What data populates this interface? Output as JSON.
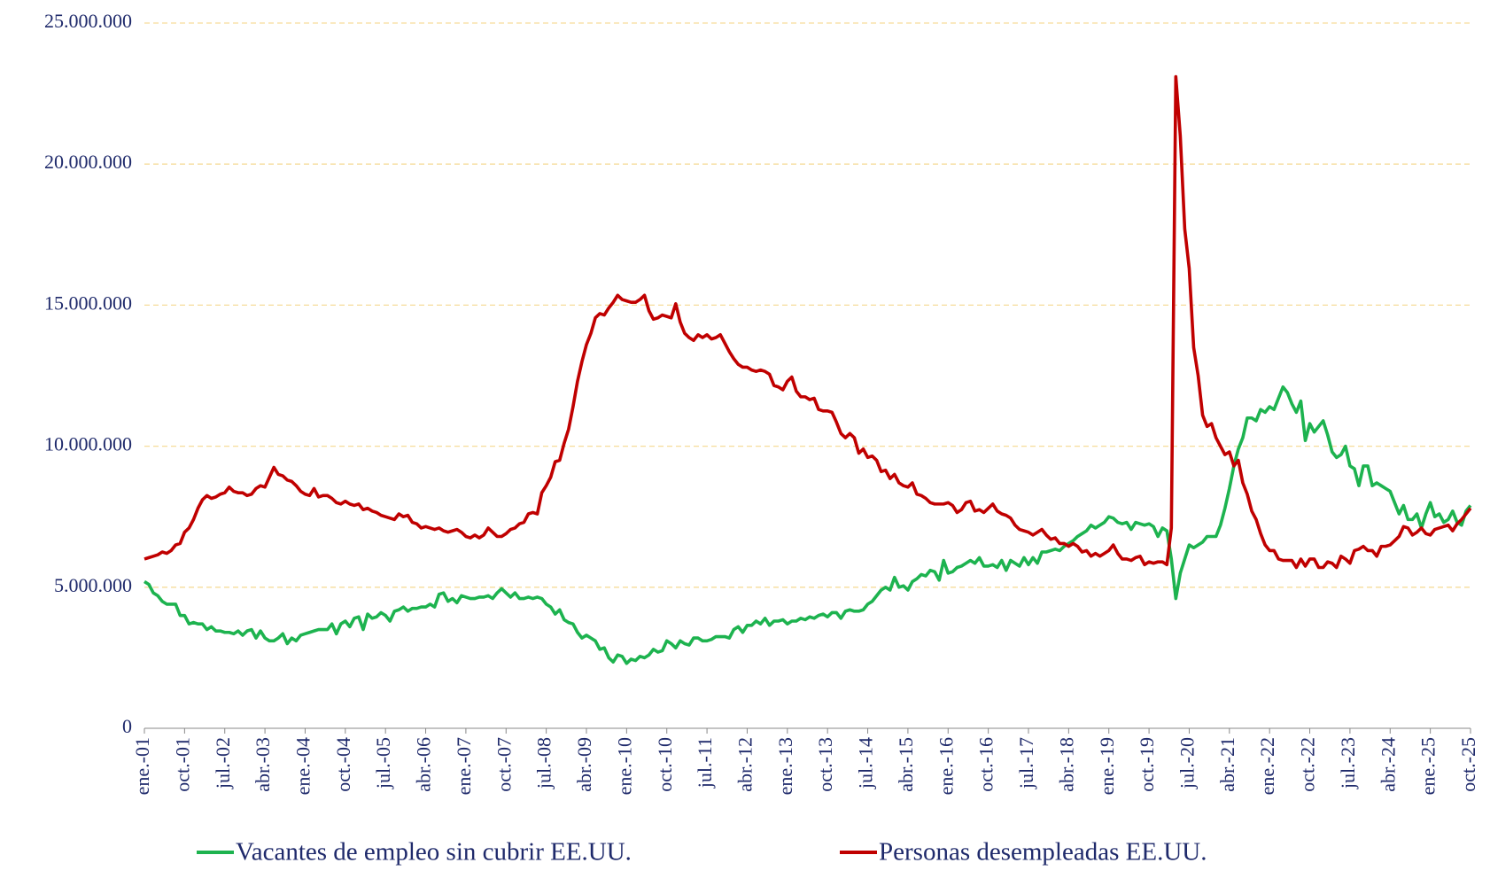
{
  "chart_data": {
    "type": "line",
    "categories": [
      "ene.-01",
      null,
      null,
      null,
      null,
      null,
      null,
      null,
      null,
      "oct.-01",
      null,
      null,
      null,
      null,
      null,
      null,
      null,
      null,
      "jul.-02",
      null,
      null,
      null,
      null,
      null,
      null,
      null,
      null,
      "abr.-03",
      null,
      null,
      null,
      null,
      null,
      null,
      null,
      null,
      "ene.-04",
      null,
      null,
      null,
      null,
      null,
      null,
      null,
      null,
      "oct.-04",
      null,
      null,
      null,
      null,
      null,
      null,
      null,
      null,
      "jul.-05",
      null,
      null,
      null,
      null,
      null,
      null,
      null,
      null,
      "abr.-06",
      null,
      null,
      null,
      null,
      null,
      null,
      null,
      null,
      "ene.-07",
      null,
      null,
      null,
      null,
      null,
      null,
      null,
      null,
      "oct.-07",
      null,
      null,
      null,
      null,
      null,
      null,
      null,
      null,
      "jul.-08",
      null,
      null,
      null,
      null,
      null,
      null,
      null,
      null,
      "abr.-09",
      null,
      null,
      null,
      null,
      null,
      null,
      null,
      null,
      "ene.-10",
      null,
      null,
      null,
      null,
      null,
      null,
      null,
      null,
      "oct.-10",
      null,
      null,
      null,
      null,
      null,
      null,
      null,
      null,
      "jul.-11",
      null,
      null,
      null,
      null,
      null,
      null,
      null,
      null,
      "abr.-12",
      null,
      null,
      null,
      null,
      null,
      null,
      null,
      null,
      "ene.-13",
      null,
      null,
      null,
      null,
      null,
      null,
      null,
      null,
      "oct.-13",
      null,
      null,
      null,
      null,
      null,
      null,
      null,
      null,
      "jul.-14",
      null,
      null,
      null,
      null,
      null,
      null,
      null,
      null,
      "abr.-15",
      null,
      null,
      null,
      null,
      null,
      null,
      null,
      null,
      "ene.-16",
      null,
      null,
      null,
      null,
      null,
      null,
      null,
      null,
      "oct.-16",
      null,
      null,
      null,
      null,
      null,
      null,
      null,
      null,
      "jul.-17",
      null,
      null,
      null,
      null,
      null,
      null,
      null,
      null,
      "abr.-18",
      null,
      null,
      null,
      null,
      null,
      null,
      null,
      null,
      "ene.-19",
      null,
      null,
      null,
      null,
      null,
      null,
      null,
      null,
      "oct.-19",
      null,
      null,
      null,
      null,
      null,
      null,
      null,
      null,
      "jul.-20",
      null,
      null,
      null,
      null,
      null,
      null,
      null,
      null,
      "abr.-21",
      null,
      null,
      null,
      null,
      null,
      null,
      null,
      null,
      "ene.-22",
      null,
      null,
      null,
      null,
      null,
      null,
      null,
      null,
      "oct.-22",
      null,
      null,
      null,
      null,
      null,
      null,
      null,
      null,
      "jul.-23",
      null,
      null,
      null,
      null,
      null,
      null,
      null,
      null,
      "abr.-24",
      null,
      null,
      null,
      null,
      null,
      null,
      null,
      null,
      "ene.-25",
      null,
      null,
      null,
      null,
      null,
      null,
      null,
      null,
      "oct.-25"
    ],
    "series": [
      {
        "name": "Vacantes de empleo sin cubrir EE.UU.",
        "color": "#1db34f",
        "values": [
          5200000,
          5100000,
          4800000,
          4700000,
          4500000,
          4400000,
          4400000,
          4400000,
          4000000,
          4000000,
          3700000,
          3750000,
          3700000,
          3700000,
          3500000,
          3600000,
          3450000,
          3450000,
          3400000,
          3400000,
          3350000,
          3450000,
          3300000,
          3450000,
          3500000,
          3200000,
          3450000,
          3200000,
          3100000,
          3100000,
          3200000,
          3350000,
          3000000,
          3200000,
          3100000,
          3300000,
          3350000,
          3400000,
          3450000,
          3500000,
          3500000,
          3500000,
          3700000,
          3350000,
          3700000,
          3800000,
          3600000,
          3900000,
          3950000,
          3500000,
          4050000,
          3900000,
          3950000,
          4100000,
          4000000,
          3800000,
          4150000,
          4200000,
          4300000,
          4150000,
          4250000,
          4250000,
          4300000,
          4300000,
          4400000,
          4300000,
          4750000,
          4800000,
          4500000,
          4600000,
          4450000,
          4700000,
          4650000,
          4600000,
          4600000,
          4650000,
          4650000,
          4700000,
          4600000,
          4800000,
          4950000,
          4800000,
          4650000,
          4800000,
          4600000,
          4600000,
          4650000,
          4600000,
          4650000,
          4600000,
          4400000,
          4300000,
          4050000,
          4200000,
          3850000,
          3750000,
          3700000,
          3400000,
          3200000,
          3300000,
          3200000,
          3100000,
          2800000,
          2850000,
          2500000,
          2350000,
          2600000,
          2550000,
          2300000,
          2450000,
          2400000,
          2550000,
          2500000,
          2600000,
          2800000,
          2700000,
          2750000,
          3100000,
          3000000,
          2850000,
          3100000,
          3000000,
          2950000,
          3200000,
          3200000,
          3100000,
          3100000,
          3150000,
          3250000,
          3250000,
          3250000,
          3200000,
          3500000,
          3600000,
          3400000,
          3650000,
          3650000,
          3800000,
          3700000,
          3900000,
          3650000,
          3800000,
          3800000,
          3850000,
          3700000,
          3800000,
          3800000,
          3900000,
          3850000,
          3950000,
          3900000,
          4000000,
          4050000,
          3950000,
          4100000,
          4100000,
          3900000,
          4150000,
          4200000,
          4150000,
          4150000,
          4200000,
          4400000,
          4500000,
          4700000,
          4900000,
          5000000,
          4900000,
          5350000,
          5000000,
          5050000,
          4900000,
          5200000,
          5300000,
          5450000,
          5400000,
          5600000,
          5550000,
          5250000,
          5950000,
          5500000,
          5550000,
          5700000,
          5750000,
          5850000,
          5950000,
          5850000,
          6050000,
          5750000,
          5750000,
          5800000,
          5700000,
          5950000,
          5600000,
          5950000,
          5850000,
          5750000,
          6050000,
          5800000,
          6050000,
          5850000,
          6250000,
          6250000,
          6300000,
          6350000,
          6300000,
          6450000,
          6550000,
          6650000,
          6800000,
          6900000,
          7000000,
          7200000,
          7100000,
          7200000,
          7300000,
          7500000,
          7450000,
          7300000,
          7250000,
          7300000,
          7050000,
          7300000,
          7250000,
          7200000,
          7250000,
          7150000,
          6800000,
          7100000,
          7000000,
          6000000,
          4600000,
          5500000,
          6000000,
          6500000,
          6400000,
          6500000,
          6600000,
          6800000,
          6800000,
          6800000,
          7200000,
          7800000,
          8500000,
          9300000,
          9900000,
          10300000,
          11000000,
          11000000,
          10900000,
          11300000,
          11200000,
          11400000,
          11300000,
          11700000,
          12100000,
          11900000,
          11500000,
          11200000,
          11600000,
          10200000,
          10800000,
          10500000,
          10700000,
          10900000,
          10400000,
          9800000,
          9600000,
          9700000,
          10000000,
          9300000,
          9200000,
          8600000,
          9300000,
          9300000,
          8600000,
          8700000,
          8600000,
          8500000,
          8400000,
          8000000,
          7600000,
          7900000,
          7400000,
          7400000,
          7600000,
          7100000,
          7600000,
          8000000,
          7500000,
          7600000,
          7300000,
          7400000,
          7700000,
          7300000,
          7200000,
          7700000,
          7900000
        ]
      },
      {
        "name": "Personas desempleadas EE.UU.",
        "color": "#c00000",
        "values": [
          6000000,
          6050000,
          6100000,
          6150000,
          6250000,
          6200000,
          6300000,
          6500000,
          6550000,
          6950000,
          7100000,
          7400000,
          7800000,
          8100000,
          8250000,
          8150000,
          8200000,
          8300000,
          8350000,
          8550000,
          8400000,
          8350000,
          8350000,
          8250000,
          8300000,
          8500000,
          8600000,
          8550000,
          8900000,
          9250000,
          9000000,
          8950000,
          8800000,
          8750000,
          8600000,
          8400000,
          8300000,
          8250000,
          8500000,
          8200000,
          8250000,
          8250000,
          8150000,
          8000000,
          7950000,
          8050000,
          7950000,
          7900000,
          7950000,
          7750000,
          7800000,
          7700000,
          7650000,
          7550000,
          7500000,
          7450000,
          7400000,
          7600000,
          7500000,
          7550000,
          7300000,
          7250000,
          7100000,
          7150000,
          7100000,
          7050000,
          7100000,
          7000000,
          6950000,
          7000000,
          7050000,
          6950000,
          6800000,
          6750000,
          6850000,
          6750000,
          6850000,
          7100000,
          6950000,
          6800000,
          6800000,
          6900000,
          7050000,
          7100000,
          7250000,
          7300000,
          7600000,
          7650000,
          7600000,
          8350000,
          8600000,
          8900000,
          9450000,
          9500000,
          10100000,
          10600000,
          11400000,
          12300000,
          13000000,
          13600000,
          14000000,
          14550000,
          14700000,
          14650000,
          14900000,
          15100000,
          15350000,
          15200000,
          15150000,
          15100000,
          15100000,
          15200000,
          15350000,
          14800000,
          14500000,
          14550000,
          14650000,
          14600000,
          14550000,
          15050000,
          14400000,
          14000000,
          13850000,
          13750000,
          13950000,
          13850000,
          13950000,
          13800000,
          13850000,
          13950000,
          13650000,
          13350000,
          13100000,
          12900000,
          12800000,
          12800000,
          12700000,
          12650000,
          12700000,
          12650000,
          12550000,
          12150000,
          12100000,
          12000000,
          12300000,
          12450000,
          11950000,
          11750000,
          11750000,
          11650000,
          11700000,
          11300000,
          11250000,
          11250000,
          11200000,
          10850000,
          10450000,
          10300000,
          10450000,
          10300000,
          9750000,
          9900000,
          9600000,
          9650000,
          9500000,
          9100000,
          9150000,
          8850000,
          9000000,
          8700000,
          8600000,
          8550000,
          8700000,
          8300000,
          8250000,
          8150000,
          8000000,
          7950000,
          7950000,
          7950000,
          8000000,
          7900000,
          7650000,
          7750000,
          8000000,
          8050000,
          7700000,
          7750000,
          7650000,
          7800000,
          7950000,
          7700000,
          7600000,
          7550000,
          7450000,
          7200000,
          7050000,
          7000000,
          6950000,
          6850000,
          6950000,
          7050000,
          6850000,
          6700000,
          6750000,
          6550000,
          6550000,
          6450000,
          6550000,
          6450000,
          6250000,
          6300000,
          6100000,
          6200000,
          6100000,
          6200000,
          6300000,
          6500000,
          6200000,
          6000000,
          6000000,
          5950000,
          6050000,
          6100000,
          5800000,
          5900000,
          5850000,
          5900000,
          5900000,
          5800000,
          7100000,
          23100000,
          21000000,
          17700000,
          16300000,
          13500000,
          12500000,
          11100000,
          10700000,
          10800000,
          10300000,
          10000000,
          9700000,
          9800000,
          9300000,
          9500000,
          8700000,
          8300000,
          7700000,
          7400000,
          6900000,
          6500000,
          6300000,
          6300000,
          6000000,
          5950000,
          5950000,
          5950000,
          5700000,
          6000000,
          5750000,
          6000000,
          6000000,
          5700000,
          5700000,
          5900000,
          5850000,
          5700000,
          6100000,
          6000000,
          5850000,
          6300000,
          6350000,
          6450000,
          6300000,
          6300000,
          6100000,
          6450000,
          6450000,
          6500000,
          6650000,
          6800000,
          7150000,
          7100000,
          6850000,
          6950000,
          7100000,
          6900000,
          6850000,
          7050000,
          7100000,
          7150000,
          7200000,
          7000000,
          7250000,
          7400000,
          7600000,
          7800000
        ]
      }
    ],
    "ylim": [
      0,
      25000000
    ],
    "yticks": [
      0,
      {
        "value": 5000000,
        "label": "5.000.000"
      },
      {
        "value": 10000000,
        "label": "10.000.000"
      },
      {
        "value": 15000000,
        "label": "15.000.000"
      },
      {
        "value": 20000000,
        "label": "20.000.000"
      },
      {
        "value": 25000000,
        "label": "25.000.000"
      }
    ],
    "grid": true,
    "legend": "bottom"
  }
}
